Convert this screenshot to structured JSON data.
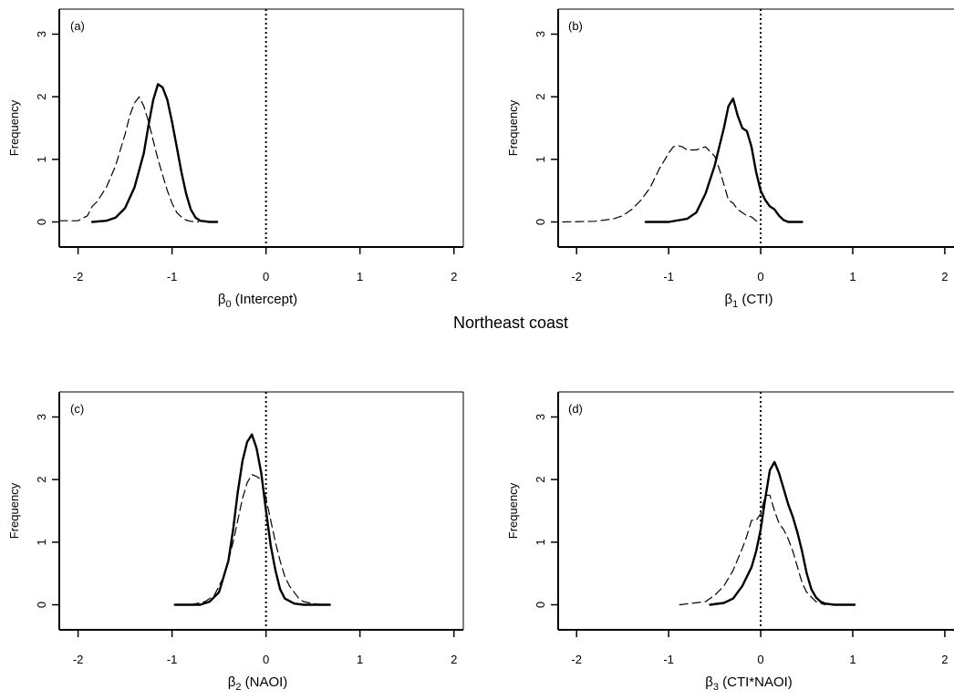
{
  "figure_title": "Northeast coast",
  "chart_data": [
    {
      "type": "line",
      "panel_label": "(a)",
      "xlabel_symbol": "β",
      "xlabel_sub": "0",
      "xlabel_rest": " (Intercept)",
      "ylabel": "Frequency",
      "xlim": [
        -2.2,
        2.1
      ],
      "ylim": [
        -0.4,
        3.4
      ],
      "xticks": [
        "-2",
        "-1",
        "0",
        "1",
        "2"
      ],
      "xtick_values": [
        -2,
        -1,
        0,
        1,
        2
      ],
      "yticks": [
        "0",
        "1",
        "2",
        "3"
      ],
      "ytick_values": [
        0,
        1,
        2,
        3
      ],
      "reference_line_x": 0,
      "series": [
        {
          "style": "solid",
          "x": [
            -1.85,
            -1.7,
            -1.6,
            -1.5,
            -1.4,
            -1.3,
            -1.25,
            -1.2,
            -1.15,
            -1.1,
            -1.05,
            -1.0,
            -0.95,
            -0.9,
            -0.85,
            -0.8,
            -0.75,
            -0.7,
            -0.6,
            -0.52
          ],
          "y": [
            0.0,
            0.02,
            0.07,
            0.22,
            0.55,
            1.1,
            1.55,
            1.95,
            2.2,
            2.15,
            1.95,
            1.6,
            1.2,
            0.8,
            0.45,
            0.2,
            0.07,
            0.02,
            0.0,
            0.0
          ]
        },
        {
          "style": "dashed",
          "x": [
            -2.2,
            -2.0,
            -1.9,
            -1.85,
            -1.8,
            -1.7,
            -1.6,
            -1.5,
            -1.45,
            -1.4,
            -1.35,
            -1.3,
            -1.25,
            -1.2,
            -1.15,
            -1.1,
            -1.05,
            -1.0,
            -0.95,
            -0.9,
            -0.85,
            -0.8,
            -0.72
          ],
          "y": [
            0.02,
            0.02,
            0.1,
            0.25,
            0.32,
            0.55,
            0.9,
            1.4,
            1.7,
            1.9,
            2.0,
            1.85,
            1.6,
            1.3,
            1.0,
            0.75,
            0.5,
            0.3,
            0.15,
            0.08,
            0.03,
            0.01,
            0.0
          ]
        }
      ]
    },
    {
      "type": "line",
      "panel_label": "(b)",
      "xlabel_symbol": "β",
      "xlabel_sub": "1",
      "xlabel_rest": " (CTI)",
      "ylabel": "Frequency",
      "xlim": [
        -2.2,
        2.1
      ],
      "ylim": [
        -0.4,
        3.4
      ],
      "xticks": [
        "-2",
        "-1",
        "0",
        "1",
        "2"
      ],
      "xtick_values": [
        -2,
        -1,
        0,
        1,
        2
      ],
      "yticks": [
        "0",
        "1",
        "2",
        "3"
      ],
      "ytick_values": [
        0,
        1,
        2,
        3
      ],
      "reference_line_x": 0,
      "series": [
        {
          "style": "solid",
          "x": [
            -1.25,
            -1.0,
            -0.8,
            -0.7,
            -0.6,
            -0.5,
            -0.45,
            -0.4,
            -0.35,
            -0.3,
            -0.25,
            -0.2,
            -0.15,
            -0.1,
            -0.05,
            0.0,
            0.05,
            0.1,
            0.15,
            0.2,
            0.25,
            0.3,
            0.45
          ],
          "y": [
            0.0,
            0.0,
            0.05,
            0.15,
            0.45,
            0.9,
            1.2,
            1.5,
            1.85,
            1.97,
            1.7,
            1.5,
            1.45,
            1.2,
            0.8,
            0.5,
            0.35,
            0.25,
            0.2,
            0.1,
            0.03,
            0.0,
            0.0
          ]
        },
        {
          "style": "dashed",
          "x": [
            -2.15,
            -1.8,
            -1.6,
            -1.5,
            -1.4,
            -1.3,
            -1.2,
            -1.1,
            -1.0,
            -0.95,
            -0.9,
            -0.85,
            -0.8,
            -0.7,
            -0.6,
            -0.5,
            -0.45,
            -0.4,
            -0.35,
            -0.3,
            -0.25,
            -0.2,
            -0.15,
            -0.1,
            -0.05,
            0.0
          ],
          "y": [
            0.0,
            0.01,
            0.05,
            0.1,
            0.2,
            0.35,
            0.55,
            0.85,
            1.1,
            1.2,
            1.22,
            1.2,
            1.15,
            1.15,
            1.2,
            1.05,
            0.85,
            0.6,
            0.35,
            0.3,
            0.2,
            0.15,
            0.1,
            0.08,
            0.02,
            0.0
          ]
        }
      ]
    },
    {
      "type": "line",
      "panel_label": "(c)",
      "xlabel_symbol": "β",
      "xlabel_sub": "2",
      "xlabel_rest": " (NAOI)",
      "ylabel": "Frequency",
      "xlim": [
        -2.2,
        2.1
      ],
      "ylim": [
        -0.4,
        3.4
      ],
      "xticks": [
        "-2",
        "-1",
        "0",
        "1",
        "2"
      ],
      "xtick_values": [
        -2,
        -1,
        0,
        1,
        2
      ],
      "yticks": [
        "0",
        "1",
        "2",
        "3"
      ],
      "ytick_values": [
        0,
        1,
        2,
        3
      ],
      "reference_line_x": 0,
      "series": [
        {
          "style": "solid",
          "x": [
            -0.97,
            -0.7,
            -0.6,
            -0.5,
            -0.4,
            -0.35,
            -0.3,
            -0.25,
            -0.2,
            -0.15,
            -0.1,
            -0.05,
            0.0,
            0.05,
            0.1,
            0.15,
            0.2,
            0.3,
            0.4,
            0.55,
            0.68
          ],
          "y": [
            0.0,
            0.0,
            0.05,
            0.2,
            0.7,
            1.2,
            1.8,
            2.3,
            2.6,
            2.72,
            2.5,
            2.1,
            1.5,
            0.95,
            0.55,
            0.25,
            0.1,
            0.02,
            0.0,
            0.0,
            0.0
          ]
        },
        {
          "style": "dashed",
          "x": [
            -0.8,
            -0.65,
            -0.55,
            -0.45,
            -0.4,
            -0.35,
            -0.3,
            -0.25,
            -0.2,
            -0.15,
            -0.1,
            -0.05,
            0.0,
            0.05,
            0.1,
            0.15,
            0.2,
            0.25,
            0.3,
            0.35,
            0.4,
            0.5,
            0.6
          ],
          "y": [
            0.0,
            0.05,
            0.15,
            0.45,
            0.7,
            1.0,
            1.35,
            1.7,
            1.95,
            2.08,
            2.05,
            2.0,
            1.7,
            1.35,
            1.0,
            0.7,
            0.45,
            0.3,
            0.2,
            0.1,
            0.05,
            0.02,
            0.0
          ]
        }
      ]
    },
    {
      "type": "line",
      "panel_label": "(d)",
      "xlabel_symbol": "β",
      "xlabel_sub": "3",
      "xlabel_rest": " (CTI*NAOI)",
      "ylabel": "Frequency",
      "xlim": [
        -2.2,
        2.1
      ],
      "ylim": [
        -0.4,
        3.4
      ],
      "xticks": [
        "-2",
        "-1",
        "0",
        "1",
        "2"
      ],
      "xtick_values": [
        -2,
        -1,
        0,
        1,
        2
      ],
      "yticks": [
        "0",
        "1",
        "2",
        "3"
      ],
      "ytick_values": [
        0,
        1,
        2,
        3
      ],
      "reference_line_x": 0,
      "series": [
        {
          "style": "solid",
          "x": [
            -0.55,
            -0.4,
            -0.3,
            -0.2,
            -0.1,
            -0.05,
            0.0,
            0.05,
            0.1,
            0.15,
            0.2,
            0.25,
            0.3,
            0.35,
            0.4,
            0.45,
            0.5,
            0.55,
            0.6,
            0.65,
            0.7,
            0.8,
            1.02
          ],
          "y": [
            0.0,
            0.03,
            0.1,
            0.3,
            0.6,
            0.85,
            1.2,
            1.7,
            2.15,
            2.28,
            2.1,
            1.85,
            1.6,
            1.4,
            1.15,
            0.85,
            0.5,
            0.25,
            0.12,
            0.05,
            0.02,
            0.0,
            0.0
          ]
        },
        {
          "style": "dashed",
          "x": [
            -0.88,
            -0.6,
            -0.5,
            -0.4,
            -0.3,
            -0.2,
            -0.15,
            -0.1,
            -0.05,
            0.0,
            0.05,
            0.1,
            0.15,
            0.2,
            0.25,
            0.3,
            0.35,
            0.4,
            0.45,
            0.5,
            0.6,
            0.7
          ],
          "y": [
            0.0,
            0.05,
            0.15,
            0.3,
            0.55,
            0.9,
            1.1,
            1.35,
            1.35,
            1.45,
            1.75,
            1.75,
            1.5,
            1.3,
            1.2,
            1.05,
            0.85,
            0.6,
            0.35,
            0.2,
            0.05,
            0.0
          ]
        }
      ]
    }
  ]
}
